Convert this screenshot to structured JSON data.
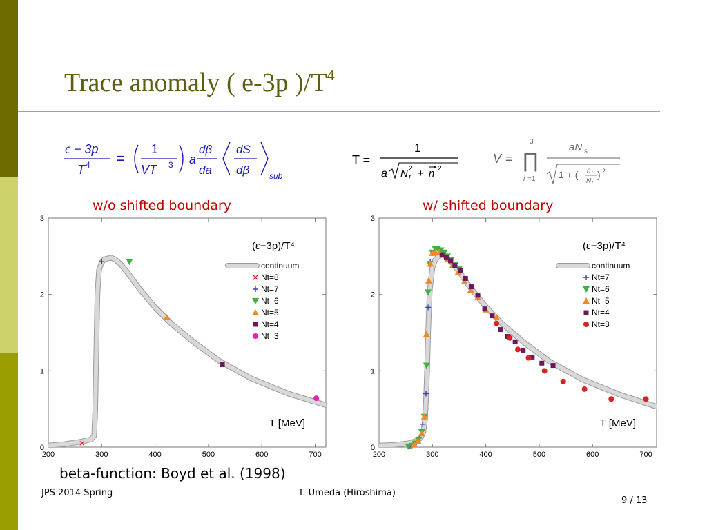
{
  "slide": {
    "title_main": "Trace anomaly  ( e-3p )/T",
    "title_sup": "4",
    "footer_left": "JPS 2014 Spring",
    "footer_center": "T. Umeda (Hiroshima)",
    "page": "9 / 13",
    "reference": "beta-function: Boyd et al. (1998)",
    "colors": {
      "title": "#5f5e12",
      "rule": "#b7b200",
      "caption": "#c00000",
      "sidebar_top": "#6b6b00",
      "sidebar_mid": "#cdd36a",
      "sidebar_bottom": "#9a9e00"
    }
  },
  "equations": {
    "trace_anomaly": "(ε − 3p)/T⁴ = (1/(VT³)) a (dβ/da) ⟨dS/dβ⟩_sub",
    "temperature": "T = 1 / (a √(N_t² + n⃗²))",
    "volume": "V = ∏_{i=1}^{3} a N_s / √(1 + (n_i/N_t)²)"
  },
  "chart_data": [
    {
      "type": "scatter",
      "caption": "w/o shifted boundary",
      "title": "(ε−3p)/T⁴",
      "xlabel": "T [MeV]",
      "ylabel": "",
      "xlim": [
        200,
        720
      ],
      "ylim": [
        0,
        3
      ],
      "x_ticks": [
        200,
        300,
        400,
        500,
        600,
        700
      ],
      "y_ticks": [
        0,
        1,
        2,
        3
      ],
      "grid": false,
      "legend_position": "top-right",
      "continuum": {
        "name": "continuum",
        "x": [
          200,
          230,
          260,
          280,
          286,
          288,
          290,
          292,
          295,
          300,
          305,
          310,
          318,
          325,
          335,
          350,
          370,
          400,
          430,
          470,
          520,
          580,
          650,
          720
        ],
        "y": [
          0.02,
          0.04,
          0.07,
          0.1,
          0.15,
          0.5,
          1.3,
          2.0,
          2.32,
          2.42,
          2.46,
          2.47,
          2.48,
          2.46,
          2.4,
          2.27,
          2.08,
          1.83,
          1.62,
          1.39,
          1.13,
          0.9,
          0.7,
          0.55
        ]
      },
      "series": [
        {
          "name": "Nt=8",
          "marker": "x",
          "color": "#e02020",
          "x": [
            263
          ],
          "y": [
            0.05
          ]
        },
        {
          "name": "Nt=7",
          "marker": "plus",
          "color": "#3a3ad0",
          "x": [
            300
          ],
          "y": [
            2.43
          ]
        },
        {
          "name": "Nt=6",
          "marker": "triangle-down",
          "color": "#40b040",
          "x": [
            352
          ],
          "y": [
            2.43
          ]
        },
        {
          "name": "Nt=5",
          "marker": "triangle-up",
          "color": "#f08a28",
          "x": [
            422
          ],
          "y": [
            1.7
          ]
        },
        {
          "name": "Nt=4",
          "marker": "square",
          "color": "#6a1a5a",
          "x": [
            526
          ],
          "y": [
            1.08
          ]
        },
        {
          "name": "Nt=3",
          "marker": "circle",
          "color": "#e020c0",
          "x": [
            702
          ],
          "y": [
            0.64
          ]
        }
      ]
    },
    {
      "type": "scatter",
      "caption": "w/  shifted boundary",
      "title": "(ε−3p)/T⁴",
      "xlabel": "T [MeV]",
      "ylabel": "",
      "xlim": [
        200,
        720
      ],
      "ylim": [
        0,
        3
      ],
      "x_ticks": [
        200,
        300,
        400,
        500,
        600,
        700
      ],
      "y_ticks": [
        0,
        1,
        2,
        3
      ],
      "grid": false,
      "legend_position": "top-right",
      "continuum": {
        "name": "continuum",
        "x": [
          200,
          230,
          255,
          270,
          278,
          283,
          286,
          288,
          290,
          292,
          295,
          300,
          305,
          310,
          318,
          325,
          335,
          350,
          370,
          400,
          430,
          470,
          520,
          580,
          650,
          720
        ],
        "y": [
          0.02,
          0.03,
          0.05,
          0.08,
          0.12,
          0.2,
          0.35,
          0.6,
          1.0,
          1.5,
          2.05,
          2.35,
          2.45,
          2.49,
          2.52,
          2.5,
          2.43,
          2.3,
          2.1,
          1.84,
          1.62,
          1.38,
          1.12,
          0.89,
          0.69,
          0.53
        ]
      },
      "series": [
        {
          "name": "Nt=7",
          "marker": "plus",
          "color": "#3a3ad0",
          "x": [
            258,
            264,
            270,
            276,
            282,
            288,
            292,
            296
          ],
          "y": [
            0.01,
            0.03,
            0.06,
            0.12,
            0.3,
            0.7,
            1.83,
            2.43
          ]
        },
        {
          "name": "Nt=6",
          "marker": "triangle-down",
          "color": "#40b040",
          "x": [
            255,
            262,
            268,
            274,
            280,
            285,
            289,
            292,
            295,
            300,
            305,
            310,
            316,
            322,
            328,
            335,
            343,
            350
          ],
          "y": [
            0.01,
            0.02,
            0.05,
            0.1,
            0.2,
            0.4,
            1.07,
            2.03,
            2.4,
            2.55,
            2.6,
            2.6,
            2.58,
            2.55,
            2.5,
            2.45,
            2.39,
            2.33
          ]
        },
        {
          "name": "Nt=5",
          "marker": "triangle-up",
          "color": "#f08a28",
          "x": [
            266,
            273,
            280,
            285,
            289,
            293,
            296,
            300,
            306,
            313,
            320,
            328,
            338,
            348,
            360,
            372,
            385,
            400,
            420
          ],
          "y": [
            0.03,
            0.08,
            0.18,
            0.4,
            1.48,
            2.18,
            2.4,
            2.54,
            2.55,
            2.55,
            2.52,
            2.46,
            2.38,
            2.29,
            2.17,
            2.06,
            1.96,
            1.8,
            1.7
          ]
        },
        {
          "name": "Nt=4",
          "marker": "square",
          "color": "#6a1a5a",
          "x": [
            318,
            326,
            334,
            342,
            352,
            362,
            373,
            385,
            398,
            412,
            427,
            440,
            455,
            470,
            487,
            505,
            526
          ],
          "y": [
            2.52,
            2.48,
            2.44,
            2.38,
            2.31,
            2.21,
            2.1,
            1.99,
            1.81,
            1.72,
            1.54,
            1.45,
            1.38,
            1.27,
            1.18,
            1.1,
            1.07
          ]
        },
        {
          "name": "Nt=3",
          "marker": "circle",
          "color": "#e02020",
          "x": [
            420,
            445,
            460,
            480,
            510,
            545,
            585,
            635,
            700
          ],
          "y": [
            1.62,
            1.43,
            1.28,
            1.17,
            1.0,
            0.86,
            0.76,
            0.63,
            0.63
          ]
        }
      ]
    }
  ]
}
